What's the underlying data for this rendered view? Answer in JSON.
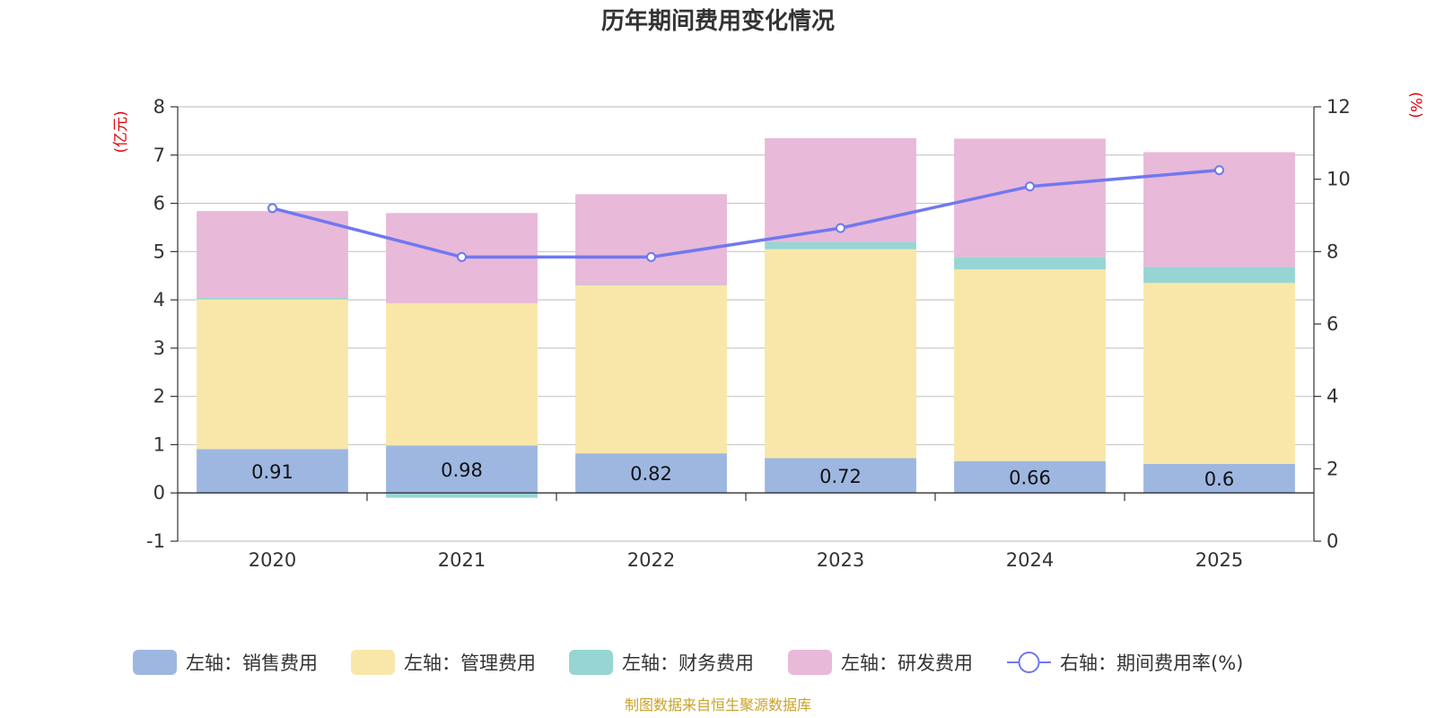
{
  "chart_data": {
    "type": "bar",
    "title": "历年期间费用变化情况",
    "categories": [
      "2020",
      "2021",
      "2022",
      "2023",
      "2024",
      "2025"
    ],
    "left_unit": "(亿元)",
    "right_unit": "(%)",
    "left_ylim": [
      -1,
      8
    ],
    "left_ticks": [
      "-1",
      "0",
      "1",
      "2",
      "3",
      "4",
      "5",
      "6",
      "7",
      "8"
    ],
    "right_ylim": [
      0,
      12
    ],
    "right_ticks": [
      "0",
      "2",
      "4",
      "6",
      "8",
      "10",
      "12"
    ],
    "series": [
      {
        "name": "左轴：销售费用",
        "axis": "left",
        "type": "bar",
        "color": "#9db7e1",
        "values": [
          0.91,
          0.98,
          0.82,
          0.72,
          0.66,
          0.6
        ],
        "labels": [
          "0.91",
          "0.98",
          "0.82",
          "0.72",
          "0.66",
          "0.6"
        ]
      },
      {
        "name": "左轴：管理费用",
        "axis": "left",
        "type": "bar",
        "color": "#f8e7a9",
        "values": [
          3.1,
          2.95,
          3.48,
          4.33,
          3.97,
          3.75
        ]
      },
      {
        "name": "左轴：财务费用",
        "axis": "left",
        "type": "bar",
        "color": "#97d5d4",
        "values": [
          0.03,
          -0.1,
          0.01,
          0.15,
          0.26,
          0.33
        ]
      },
      {
        "name": "左轴：研发费用",
        "axis": "left",
        "type": "bar",
        "color": "#e8b9d9",
        "values": [
          1.8,
          1.87,
          1.88,
          2.15,
          2.45,
          2.38
        ]
      },
      {
        "name": "右轴：期间费用率(%)",
        "axis": "right",
        "type": "line",
        "color": "#7078f0",
        "values": [
          9.2,
          7.85,
          7.85,
          8.65,
          9.8,
          10.25
        ]
      }
    ],
    "grid": true,
    "legend_position": "bottom"
  },
  "footer": {
    "source": "制图数据来自恒生聚源数据库"
  }
}
